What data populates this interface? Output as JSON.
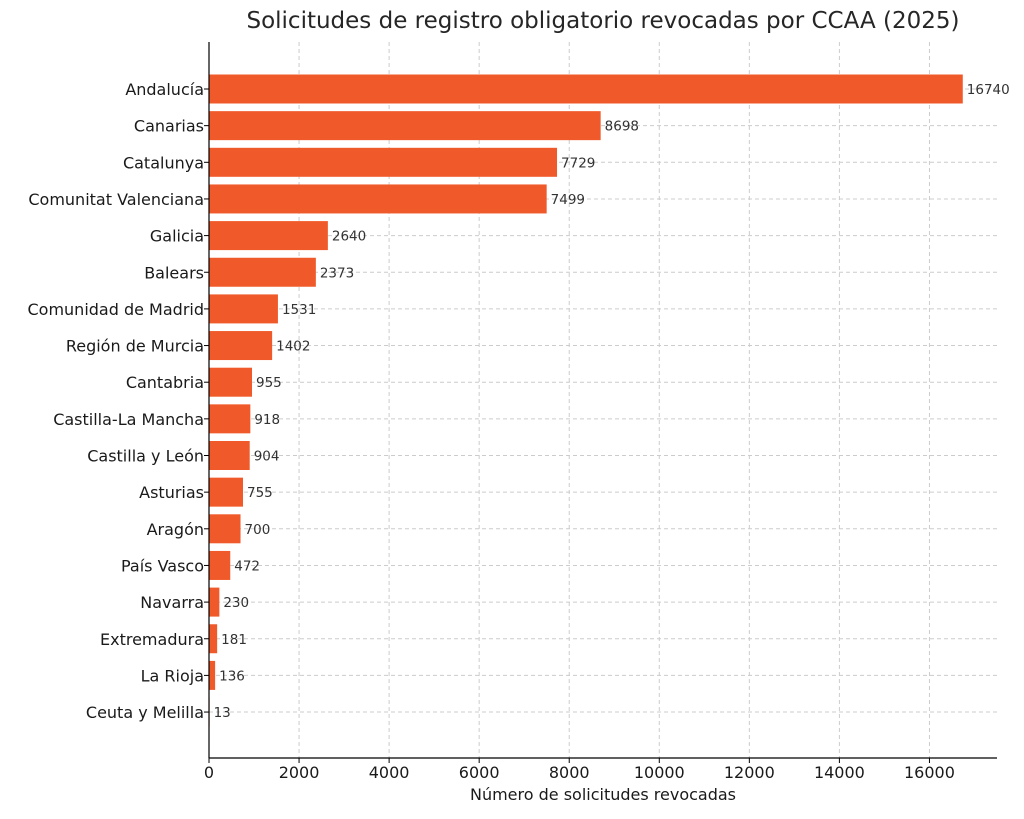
{
  "chart_data": {
    "type": "bar",
    "orientation": "horizontal",
    "title": "Solicitudes de registro obligatorio revocadas por CCAA (2025)",
    "xlabel": "Número de solicitudes revocadas",
    "ylabel": "",
    "xlim": [
      0,
      17500
    ],
    "xticks": [
      0,
      2000,
      4000,
      6000,
      8000,
      10000,
      12000,
      14000,
      16000
    ],
    "grid": true,
    "bar_color": "#f05a2a",
    "categories": [
      "Andalucía",
      "Canarias",
      "Catalunya",
      "Comunitat Valenciana",
      "Galicia",
      "Balears",
      "Comunidad de Madrid",
      "Región de Murcia",
      "Cantabria",
      "Castilla-La Mancha",
      "Castilla y León",
      "Asturias",
      "Aragón",
      "País Vasco",
      "Navarra",
      "Extremadura",
      "La Rioja",
      "Ceuta y Melilla"
    ],
    "values": [
      16740,
      8698,
      7729,
      7499,
      2640,
      2373,
      1531,
      1402,
      955,
      918,
      904,
      755,
      700,
      472,
      230,
      181,
      136,
      13
    ]
  }
}
